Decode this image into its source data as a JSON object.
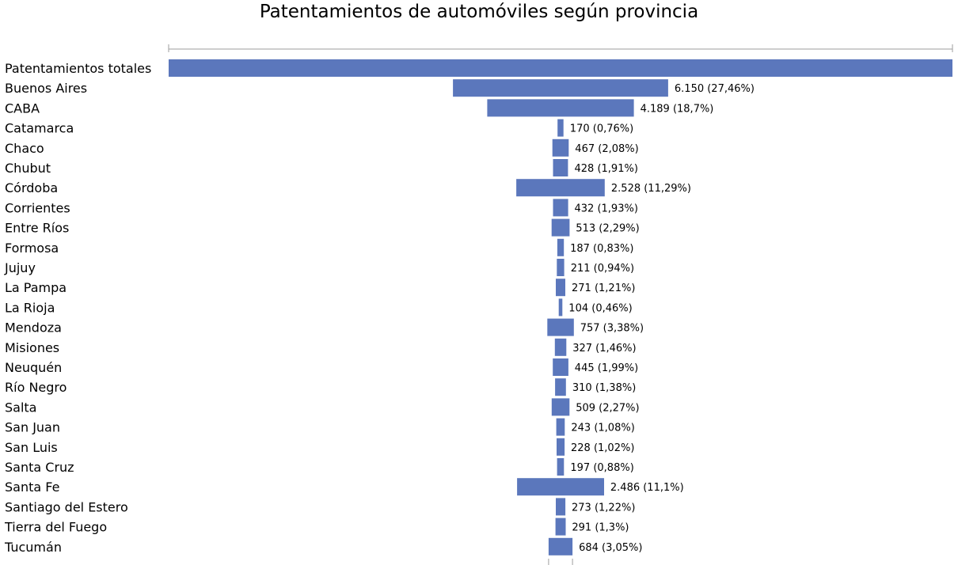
{
  "chart_data": {
    "type": "bar",
    "orientation": "horizontal-funnel",
    "title": "Patentamientos de automóviles según provincia",
    "color": "#5b77bc",
    "categories": [
      "Patentamientos totales",
      "Buenos Aires",
      "CABA",
      "Catamarca",
      "Chaco",
      "Chubut",
      "Córdoba",
      "Corrientes",
      "Entre Ríos",
      "Formosa",
      "Jujuy",
      "La Pampa",
      "La Rioja",
      "Mendoza",
      "Misiones",
      "Neuquén",
      "Río Negro",
      "Salta",
      "San Juan",
      "San Luis",
      "Santa Cruz",
      "Santa Fe",
      "Santiago del Estero",
      "Tierra del Fuego",
      "Tucumán"
    ],
    "values": [
      22397,
      6150,
      4189,
      170,
      467,
      428,
      2528,
      432,
      513,
      187,
      211,
      271,
      104,
      757,
      327,
      445,
      310,
      509,
      243,
      228,
      197,
      2486,
      273,
      291,
      684
    ],
    "data_labels": [
      "",
      "6.150 (27,46%)",
      "4.189 (18,7%)",
      "170 (0,76%)",
      "467 (2,08%)",
      "428 (1,91%)",
      "2.528 (11,29%)",
      "432 (1,93%)",
      "513 (2,29%)",
      "187 (0,83%)",
      "211 (0,94%)",
      "271 (1,21%)",
      "104 (0,46%)",
      "757 (3,38%)",
      "327 (1,46%)",
      "445 (1,99%)",
      "310 (1,38%)",
      "509 (2,27%)",
      "243 (1,08%)",
      "228 (1,02%)",
      "197 (0,88%)",
      "2.486 (11,1%)",
      "273 (1,22%)",
      "291 (1,3%)",
      "684 (3,05%)"
    ]
  }
}
